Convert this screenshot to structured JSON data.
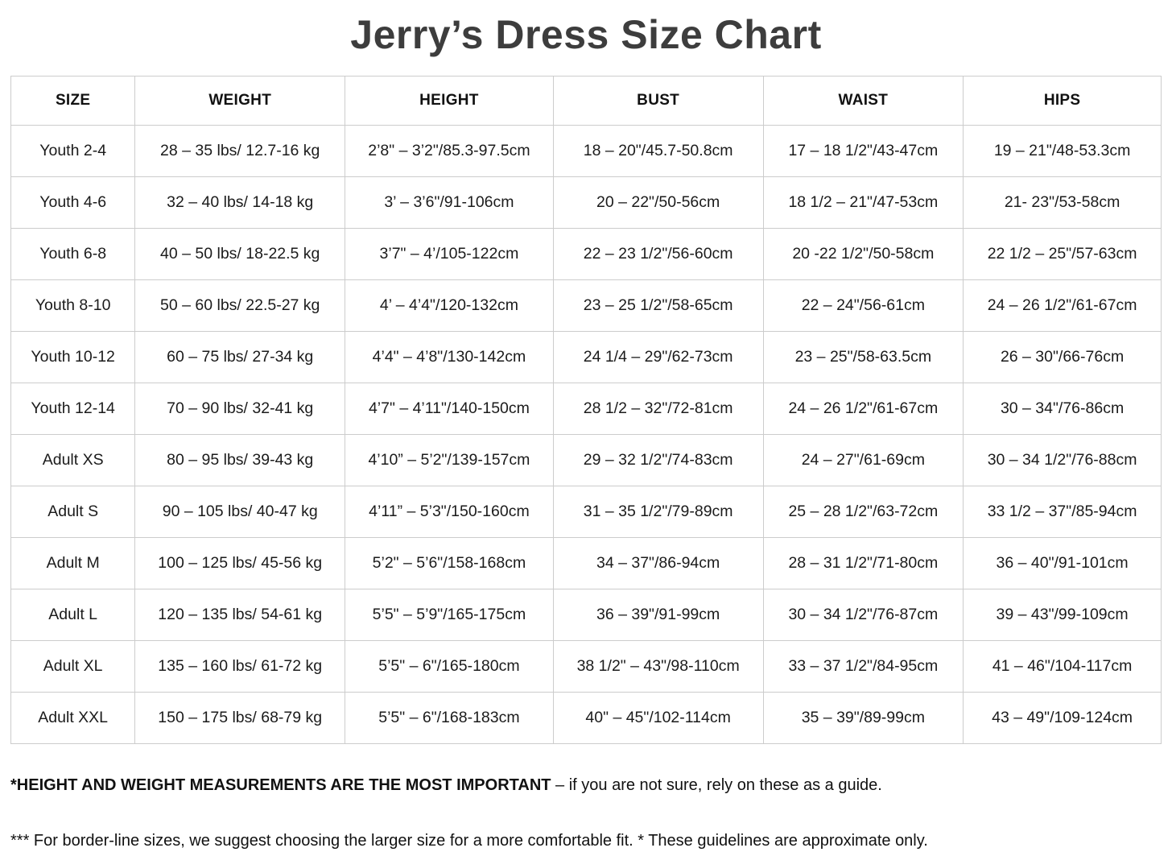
{
  "title": "Jerry’s Dress Size Chart",
  "table": {
    "columns": [
      "SIZE",
      "WEIGHT",
      "HEIGHT",
      "BUST",
      "WAIST",
      "HIPS"
    ],
    "rows": [
      [
        "Youth 2-4",
        "28 – 35 lbs/ 12.7-16 kg",
        "2’8\" – 3’2\"/85.3-97.5cm",
        "18 – 20\"/45.7-50.8cm",
        "17 – 18 1/2\"/43-47cm",
        "19 – 21\"/48-53.3cm"
      ],
      [
        "Youth 4-6",
        "32 – 40 lbs/ 14-18 kg",
        "3’ – 3’6\"/91-106cm",
        "20 – 22\"/50-56cm",
        "18 1/2 – 21\"/47-53cm",
        "21- 23\"/53-58cm"
      ],
      [
        "Youth 6-8",
        "40 – 50 lbs/ 18-22.5 kg",
        "3’7\" – 4’/105-122cm",
        "22 – 23 1/2\"/56-60cm",
        "20 -22 1/2\"/50-58cm",
        "22 1/2 – 25\"/57-63cm"
      ],
      [
        "Youth 8-10",
        "50 – 60 lbs/ 22.5-27 kg",
        "4’ – 4’4\"/120-132cm",
        "23 – 25 1/2\"/58-65cm",
        "22 – 24\"/56-61cm",
        "24 – 26 1/2\"/61-67cm"
      ],
      [
        "Youth 10-12",
        "60 – 75 lbs/ 27-34 kg",
        "4’4\" – 4’8\"/130-142cm",
        "24 1/4 – 29\"/62-73cm",
        "23 – 25\"/58-63.5cm",
        "26 – 30\"/66-76cm"
      ],
      [
        "Youth 12-14",
        "70 – 90 lbs/ 32-41 kg",
        "4’7\" – 4’11\"/140-150cm",
        "28 1/2 – 32\"/72-81cm",
        "24 – 26 1/2\"/61-67cm",
        "30 – 34\"/76-86cm"
      ],
      [
        "Adult XS",
        "80 – 95 lbs/ 39-43 kg",
        "4’10” – 5’2\"/139-157cm",
        "29 – 32 1/2\"/74-83cm",
        "24 – 27\"/61-69cm",
        "30 – 34 1/2\"/76-88cm"
      ],
      [
        "Adult S",
        "90 – 105 lbs/ 40-47 kg",
        "4’11” – 5’3\"/150-160cm",
        "31 – 35 1/2\"/79-89cm",
        "25 – 28 1/2\"/63-72cm",
        "33 1/2 – 37\"/85-94cm"
      ],
      [
        "Adult M",
        "100 – 125 lbs/ 45-56 kg",
        "5’2\" – 5’6\"/158-168cm",
        "34 – 37\"/86-94cm",
        "28 – 31 1/2\"/71-80cm",
        "36 – 40\"/91-101cm"
      ],
      [
        "Adult L",
        "120 – 135 lbs/ 54-61 kg",
        "5’5\" – 5’9\"/165-175cm",
        "36 – 39\"/91-99cm",
        "30 – 34 1/2\"/76-87cm",
        "39 – 43\"/99-109cm"
      ],
      [
        "Adult XL",
        "135 – 160 lbs/ 61-72 kg",
        "5’5\" – 6\"/165-180cm",
        "38 1/2\" – 43\"/98-110cm",
        "33 – 37 1/2\"/84-95cm",
        "41 – 46\"/104-117cm"
      ],
      [
        "Adult XXL",
        "150 – 175 lbs/ 68-79 kg",
        "5’5\" – 6\"/168-183cm",
        "40\" – 45\"/102-114cm",
        "35 – 39\"/89-99cm",
        "43 – 49\"/109-124cm"
      ]
    ]
  },
  "notes": [
    {
      "bold": "*HEIGHT AND WEIGHT MEASUREMENTS ARE THE MOST IMPORTANT",
      "text": " – if you are not sure, rely on these as a guide."
    },
    {
      "bold": "",
      "text": "*** For border-line sizes, we suggest choosing the larger size for a more comfortable fit. * These guidelines are approximate only."
    }
  ],
  "colors": {
    "title": "#3d3d3d",
    "border": "#cccccc",
    "text": "#1b1b1b",
    "background": "#ffffff"
  }
}
